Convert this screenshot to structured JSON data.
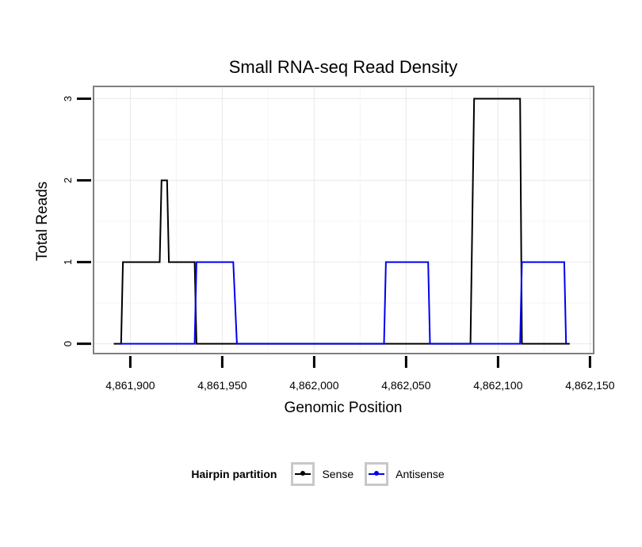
{
  "chart_data": {
    "type": "line",
    "title": "Small RNA-seq Read Density",
    "xlabel": "Genomic Position",
    "ylabel": "Total Reads",
    "xlim": [
      4861880,
      4862152
    ],
    "ylim": [
      -0.12,
      3.15
    ],
    "x_ticks": [
      4861900,
      4861950,
      4862000,
      4862050,
      4862100,
      4862150
    ],
    "x_tick_labels": [
      "4,861,900",
      "4,861,950",
      "4,862,000",
      "4,862,050",
      "4,862,100",
      "4,862,150"
    ],
    "y_ticks": [
      0,
      1,
      2,
      3
    ],
    "y_tick_labels": [
      "0",
      "1",
      "2",
      "3"
    ],
    "grid": true,
    "legend_position": "bottom",
    "legend_title": "Hairpin partition",
    "series": [
      {
        "name": "Sense",
        "color": "#000000",
        "x": [
          4861891,
          4861895,
          4861896,
          4861916,
          4861917,
          4861920,
          4861921,
          4861935,
          4861936,
          4861941,
          4861996,
          4862085,
          4862087,
          4862112,
          4862113,
          4862139
        ],
        "y": [
          0,
          0,
          1,
          1,
          2,
          2,
          1,
          1,
          0,
          0,
          0,
          0,
          3,
          3,
          0,
          0
        ]
      },
      {
        "name": "Antisense",
        "color": "#0000ee",
        "x": [
          4861894,
          4861935,
          4861936,
          4861956,
          4861958,
          4862002,
          4862038,
          4862039,
          4862062,
          4862063,
          4862112,
          4862113,
          4862136,
          4862137
        ],
        "y": [
          0,
          0,
          1,
          1,
          0,
          0,
          0,
          1,
          1,
          0,
          0,
          1,
          1,
          0
        ]
      }
    ]
  }
}
